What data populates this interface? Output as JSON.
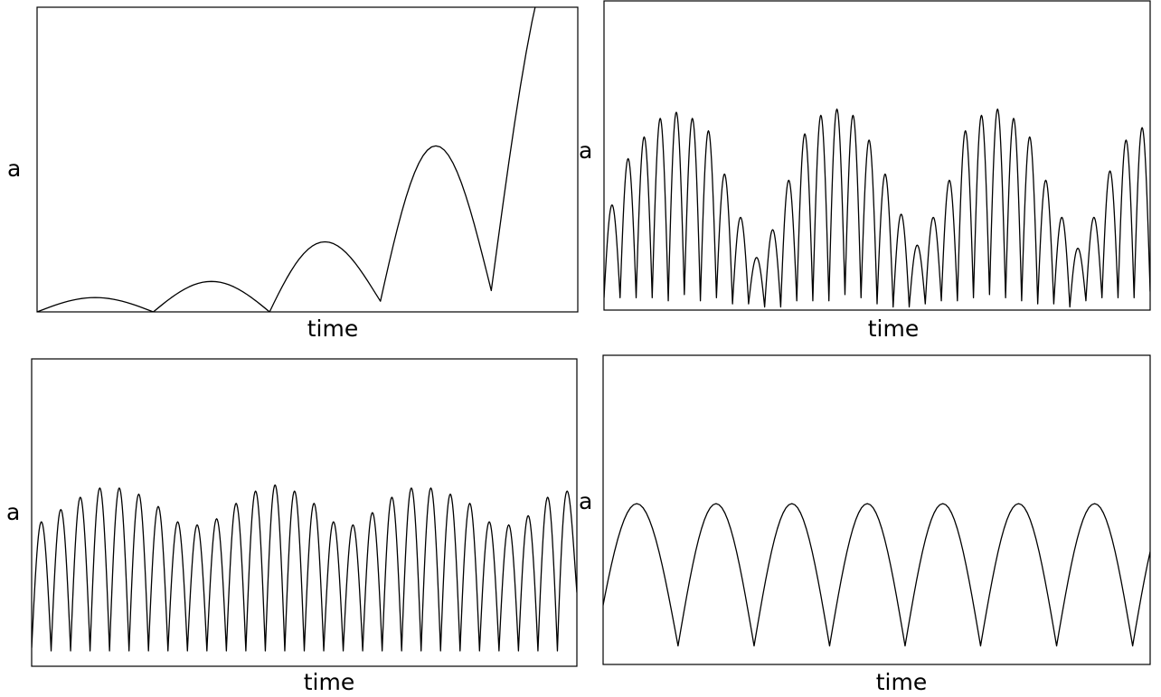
{
  "chart_data": [
    {
      "type": "line",
      "title": "",
      "xlabel": "time",
      "ylabel": "a",
      "grid": false,
      "series": [
        {
          "lobes": [
            {
              "start": 0.0,
              "end": 0.215,
              "peak": 0.047
            },
            {
              "start": 0.215,
              "end": 0.43,
              "peak": 0.1
            },
            {
              "start": 0.43,
              "end": 0.635,
              "peak": 0.23
            },
            {
              "start": 0.635,
              "end": 0.84,
              "peak": 0.545
            },
            {
              "start": 0.84,
              "end": 1.12,
              "peak": 1.25
            }
          ],
          "minima": [
            0.0,
            0.0,
            0.0,
            0.035,
            0.07
          ]
        }
      ]
    },
    {
      "type": "line",
      "title": "",
      "xlabel": "time",
      "ylabel": "a",
      "grid": false,
      "series": [
        {
          "peaks": [
            0.34,
            0.49,
            0.56,
            0.62,
            0.64,
            0.62,
            0.58,
            0.44,
            0.3,
            0.17,
            0.26,
            0.42,
            0.57,
            0.63,
            0.65,
            0.63,
            0.55,
            0.44,
            0.31,
            0.21,
            0.3,
            0.42,
            0.58,
            0.63,
            0.65,
            0.62,
            0.56,
            0.42,
            0.3,
            0.2,
            0.3,
            0.45,
            0.55,
            0.59
          ],
          "minima": [
            0.04,
            0.04,
            0.04,
            0.04,
            0.03,
            0.05,
            0.03,
            0.04,
            0.02,
            0.02,
            0.01,
            0.01,
            0.03,
            0.03,
            0.03,
            0.05,
            0.04,
            0.02,
            0.01,
            0.01,
            0.02,
            0.03,
            0.03,
            0.04,
            0.05,
            0.04,
            0.03,
            0.02,
            0.02,
            0.01,
            0.03,
            0.04,
            0.04,
            0.04,
            0.06
          ]
        }
      ]
    },
    {
      "type": "line",
      "title": "",
      "xlabel": "time",
      "ylabel": "a",
      "grid": false,
      "series": [
        {
          "peaks": [
            0.47,
            0.51,
            0.55,
            0.58,
            0.58,
            0.56,
            0.52,
            0.47,
            0.46,
            0.48,
            0.53,
            0.57,
            0.59,
            0.57,
            0.53,
            0.47,
            0.46,
            0.5,
            0.55,
            0.58,
            0.58,
            0.56,
            0.53,
            0.47,
            0.46,
            0.49,
            0.55,
            0.57
          ],
          "minima": [
            0.06,
            0.05,
            0.05,
            0.05,
            0.05,
            0.05,
            0.05,
            0.05,
            0.05,
            0.05,
            0.05,
            0.05,
            0.05,
            0.05,
            0.05,
            0.05,
            0.05,
            0.05,
            0.05,
            0.05,
            0.05,
            0.05,
            0.05,
            0.05,
            0.05,
            0.05,
            0.05,
            0.05,
            0.24
          ]
        }
      ]
    },
    {
      "type": "line",
      "title": "",
      "xlabel": "time",
      "ylabel": "a",
      "grid": false,
      "series": [
        {
          "lobes": [
            {
              "start": -0.014,
              "end": 0.137,
              "peak": 0.52
            },
            {
              "start": 0.137,
              "end": 0.276,
              "peak": 0.52
            },
            {
              "start": 0.276,
              "end": 0.414,
              "peak": 0.52
            },
            {
              "start": 0.414,
              "end": 0.552,
              "peak": 0.52
            },
            {
              "start": 0.552,
              "end": 0.69,
              "peak": 0.52
            },
            {
              "start": 0.69,
              "end": 0.829,
              "peak": 0.52
            },
            {
              "start": 0.829,
              "end": 0.968,
              "peak": 0.52
            },
            {
              "start": 0.968,
              "end": 1.107,
              "peak": 0.52
            }
          ],
          "minima": [
            0.06
          ]
        }
      ]
    }
  ]
}
